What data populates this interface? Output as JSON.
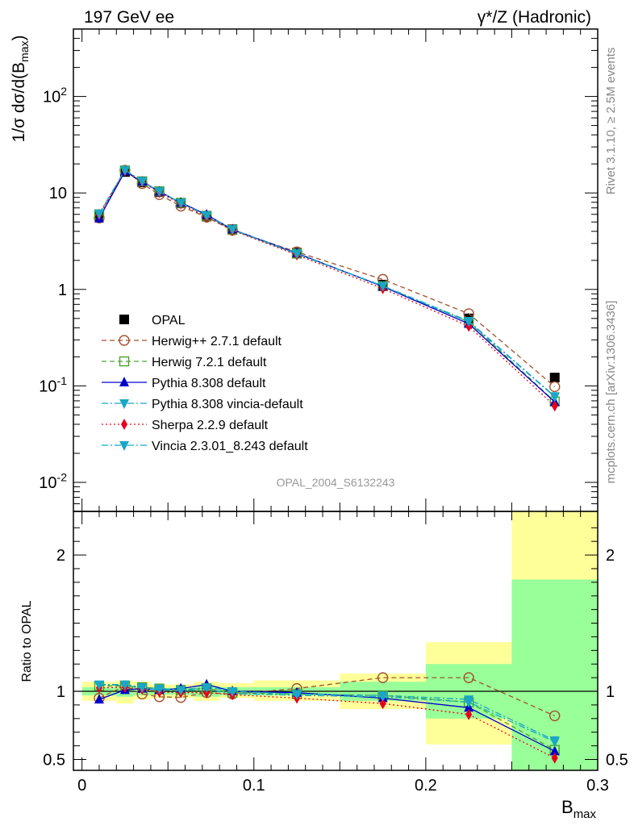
{
  "header": {
    "left": "197 GeV ee",
    "right": "γ*/Z (Hadronic)"
  },
  "side_labels": {
    "rivet": "Rivet 3.1.10, ≥ 2.5M events",
    "source": "mcplots.cern.ch [arXiv:1306.3436]"
  },
  "chart_data": [
    {
      "type": "line",
      "panel": "main",
      "yscale": "log",
      "ylabel": "1/σ dσ/d(B_max)",
      "ylim": [
        0.005,
        500
      ],
      "xlim": [
        -0.005,
        0.3
      ],
      "ytick_labels": [
        "10^2",
        "10",
        "1",
        "10^-1",
        "10^-2"
      ],
      "watermark": "OPAL_2004_S6132243",
      "x": [
        0.01,
        0.025,
        0.035,
        0.045,
        0.0575,
        0.0725,
        0.0875,
        0.125,
        0.175,
        0.225,
        0.275
      ],
      "series": [
        {
          "name": "OPAL",
          "color": "#000000",
          "marker": "square-filled",
          "line": "none",
          "values": [
            5.8,
            16.5,
            12.9,
            10.2,
            7.8,
            5.7,
            4.2,
            2.4,
            1.12,
            0.5,
            0.122
          ]
        },
        {
          "name": "Herwig++ 2.7.1 default",
          "color": "#a0522d",
          "marker": "circle-open",
          "line": "dashed",
          "values": [
            5.5,
            17.2,
            12.5,
            9.6,
            7.3,
            5.6,
            4.1,
            2.45,
            1.27,
            0.56,
            0.098
          ]
        },
        {
          "name": "Herwig 7.2.1 default",
          "color": "#4aa32b",
          "marker": "square-open",
          "line": "dashed",
          "values": [
            6.0,
            17.1,
            13.2,
            10.4,
            7.9,
            5.8,
            4.15,
            2.35,
            1.08,
            0.46,
            0.069
          ]
        },
        {
          "name": "Pythia 8.308 default",
          "color": "#0000cc",
          "marker": "triangle-up",
          "line": "solid",
          "values": [
            5.45,
            16.7,
            13.1,
            10.3,
            7.95,
            5.95,
            4.2,
            2.38,
            1.07,
            0.44,
            0.068
          ]
        },
        {
          "name": "Pythia 8.308 vincia-default",
          "color": "#1aa6c4",
          "marker": "triangle-down",
          "line": "dashdot",
          "values": [
            6.05,
            17.2,
            13.2,
            10.3,
            7.85,
            5.8,
            4.15,
            2.33,
            1.08,
            0.46,
            0.077
          ]
        },
        {
          "name": "Sherpa 2.2.9 default",
          "color": "#e8001c",
          "marker": "diamond",
          "line": "dotted",
          "values": [
            5.95,
            17.0,
            13.1,
            10.1,
            7.7,
            5.65,
            4.1,
            2.28,
            1.02,
            0.415,
            0.062
          ]
        },
        {
          "name": "Vincia 2.3.01_8.243 default",
          "color": "#1aa6c4",
          "marker": "triangle-down",
          "line": "dashdot",
          "values": [
            6.1,
            17.3,
            13.3,
            10.4,
            7.9,
            5.85,
            4.2,
            2.35,
            1.09,
            0.47,
            0.078
          ]
        }
      ]
    },
    {
      "type": "line",
      "panel": "ratio",
      "ylabel": "Ratio to OPAL",
      "xlabel": "B_max",
      "ylim": [
        0.42,
        2.32
      ],
      "xlim": [
        -0.005,
        0.3
      ],
      "ytick_labels": [
        "0.5",
        "1",
        "2"
      ],
      "xtick_labels": [
        "0",
        "0.1",
        "0.2",
        "0.3"
      ],
      "x": [
        0.01,
        0.025,
        0.035,
        0.045,
        0.0575,
        0.0725,
        0.0875,
        0.125,
        0.175,
        0.225,
        0.275
      ],
      "bands": {
        "bin_edges": [
          0.0,
          0.02,
          0.03,
          0.04,
          0.05,
          0.065,
          0.08,
          0.1,
          0.15,
          0.2,
          0.25,
          0.3
        ],
        "yellow_lo": [
          0.93,
          0.91,
          0.94,
          0.95,
          0.95,
          0.93,
          0.95,
          0.93,
          0.87,
          0.61,
          0.38
        ],
        "yellow_hi": [
          1.07,
          1.08,
          1.07,
          1.05,
          1.05,
          1.07,
          1.06,
          1.08,
          1.13,
          1.36,
          2.35
        ],
        "green_lo": [
          0.97,
          0.96,
          0.97,
          0.975,
          0.975,
          0.96,
          0.97,
          0.97,
          0.93,
          0.8,
          0.38
        ],
        "green_hi": [
          1.03,
          1.04,
          1.03,
          1.025,
          1.025,
          1.04,
          1.03,
          1.03,
          1.07,
          1.2,
          1.82
        ]
      },
      "series": [
        {
          "name": "Herwig++ 2.7.1 default",
          "values": [
            0.95,
            1.04,
            0.98,
            0.96,
            0.955,
            0.99,
            0.98,
            1.02,
            1.1,
            1.1,
            0.82
          ]
        },
        {
          "name": "Herwig 7.2.1 default",
          "values": [
            1.04,
            1.04,
            1.03,
            1.02,
            1.01,
            1.02,
            0.99,
            0.98,
            0.97,
            0.92,
            0.57
          ]
        },
        {
          "name": "Pythia 8.308 default",
          "values": [
            0.94,
            1.01,
            1.02,
            1.01,
            1.02,
            1.05,
            1.0,
            0.99,
            0.95,
            0.88,
            0.56
          ]
        },
        {
          "name": "Pythia 8.308 vincia-default",
          "values": [
            1.045,
            1.045,
            1.02,
            1.01,
            1.005,
            1.015,
            0.985,
            0.97,
            0.96,
            0.92,
            0.63
          ]
        },
        {
          "name": "Sherpa 2.2.9 default",
          "values": [
            1.025,
            1.03,
            1.015,
            0.995,
            0.99,
            0.99,
            0.975,
            0.95,
            0.91,
            0.83,
            0.51
          ]
        },
        {
          "name": "Vincia 2.3.01_8.243 default",
          "values": [
            1.05,
            1.05,
            1.03,
            1.02,
            1.01,
            1.03,
            1.0,
            0.98,
            0.97,
            0.94,
            0.64
          ]
        }
      ]
    }
  ]
}
